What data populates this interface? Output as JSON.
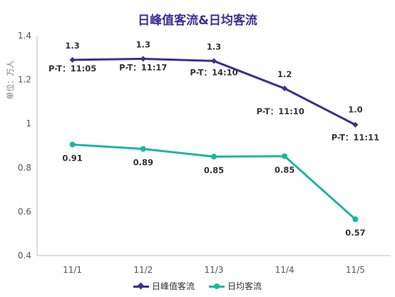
{
  "chart_data": {
    "type": "line",
    "title": "日峰值客流&日均客流",
    "ylabel": "单位：万人",
    "ylim": [
      0.4,
      1.4
    ],
    "yticks": [
      "0.4",
      "0.6",
      "0.8",
      "1",
      "1.2",
      "1.4"
    ],
    "categories": [
      "11/1",
      "11/2",
      "11/3",
      "11/4",
      "11/5"
    ],
    "series": [
      {
        "name": "日峰值客流",
        "color": "#3f2f8f",
        "marker": "diamond",
        "values": [
          1.29,
          1.295,
          1.285,
          1.16,
          0.995
        ],
        "labels": [
          "1.3",
          "1.3",
          "1.3",
          "1.2",
          "1.0"
        ],
        "annotations": [
          "P-T：11:05",
          "P-T：11:17",
          "P-T：14:10",
          "P-T：11:10",
          "P-T：11:11"
        ]
      },
      {
        "name": "日均客流",
        "color": "#1fb5a0",
        "marker": "circle",
        "values": [
          0.905,
          0.885,
          0.85,
          0.852,
          0.565
        ],
        "labels": [
          "0.91",
          "0.89",
          "0.85",
          "0.85",
          "0.57"
        ]
      }
    ],
    "legend": "bottom"
  }
}
